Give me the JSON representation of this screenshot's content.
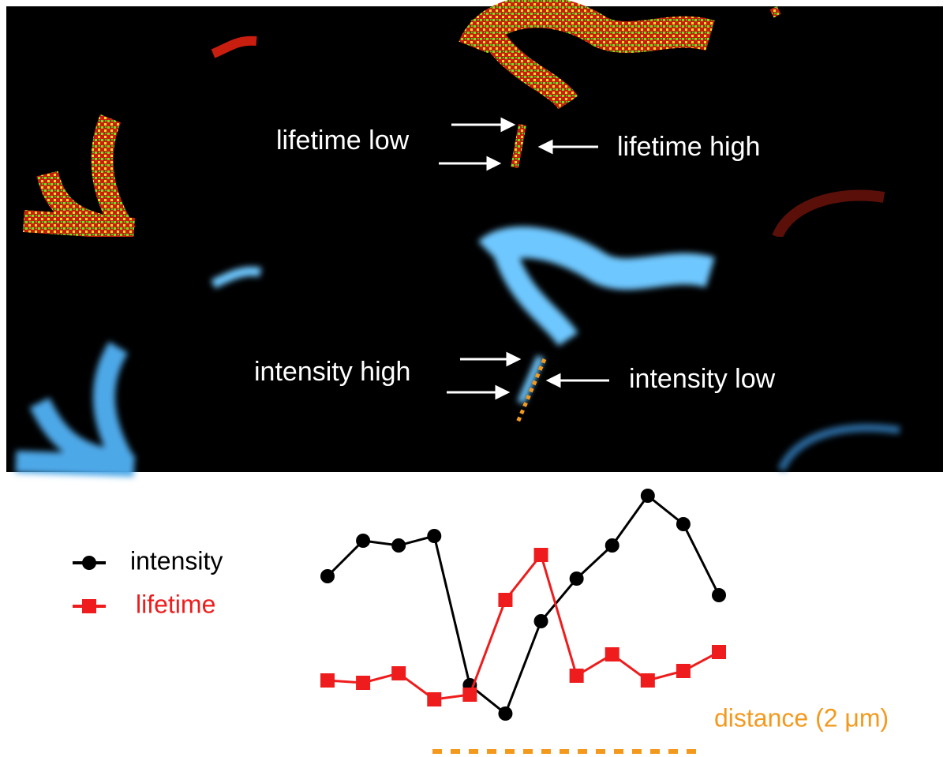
{
  "panels": {
    "lifetime": {
      "label_left": "lifetime low",
      "label_right": "lifetime high"
    },
    "intensity": {
      "label_left": "intensity high",
      "label_right": "intensity low"
    }
  },
  "chart_data": {
    "type": "line",
    "categories": [
      null,
      null,
      null,
      null,
      null,
      null,
      null,
      null,
      null,
      null,
      null,
      null
    ],
    "series": [
      {
        "name": "intensity",
        "color": "#000000",
        "marker": "circle",
        "values": [
          70,
          85,
          83,
          87,
          24,
          12,
          51,
          69,
          83,
          104,
          92,
          62
        ]
      },
      {
        "name": "lifetime",
        "color": "#ee1c1c",
        "marker": "square",
        "values": [
          26,
          25,
          29,
          18,
          20,
          60,
          79,
          28,
          37,
          26,
          30,
          38
        ]
      }
    ],
    "ylim": [
      0,
      110
    ],
    "annotation": "distance (2 μm)",
    "annotation_color": "#f39a1e"
  }
}
